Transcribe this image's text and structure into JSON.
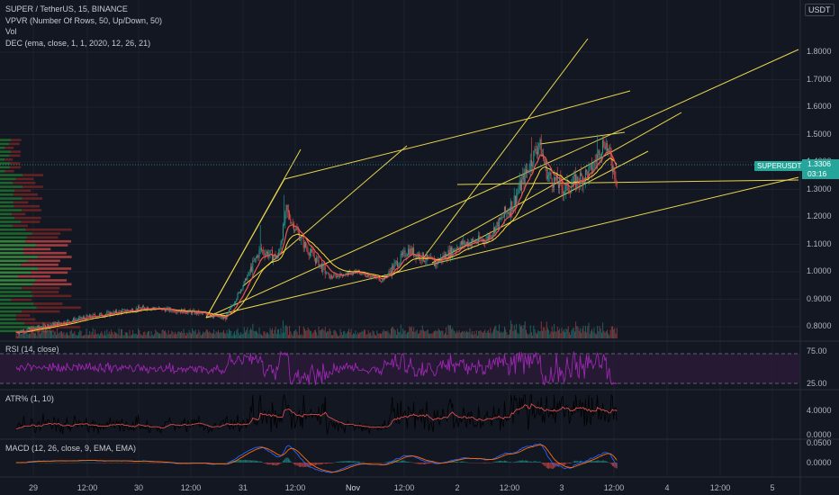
{
  "legend": {
    "title": "SUPER / TetherUS, 15, BINANCE",
    "vpvr": "VPVR (Number Of Rows, 50, Up/Down, 50)",
    "vol": "Vol",
    "dec": "DEC (ema, close, 1, 1, 2020, 12, 26, 21)"
  },
  "currency": "USDT",
  "last_price": {
    "ticker": "SUPERUSDT",
    "price": "1.3306",
    "countdown": "03:16"
  },
  "panes": {
    "rsi": {
      "label": "RSI (14, close)",
      "ticks": [
        "75.00",
        "25.00"
      ]
    },
    "atr": {
      "label": "ATR% (1, 10)",
      "ticks": [
        "4.0000",
        "0.0000"
      ]
    },
    "macd": {
      "label": "MACD (12, 26, close, 9, EMA, EMA)",
      "ticks": [
        "0.0500",
        "0.0000"
      ]
    }
  },
  "price_ticks": [
    "1.8000",
    "1.7000",
    "1.6000",
    "1.5000",
    "1.4000",
    "1.3000",
    "1.2000",
    "1.1000",
    "1.0000",
    "0.9000",
    "0.8000"
  ],
  "time_ticks": [
    "29",
    "12:00",
    "30",
    "12:00",
    "31",
    "12:00",
    "Nov",
    "12:00",
    "2",
    "12:00",
    "3",
    "12:00",
    "4",
    "12:00",
    "5"
  ],
  "colors": {
    "background": "#131722",
    "up": "#26a69a",
    "down": "#ef5350",
    "ema": "#ef5350",
    "ma": "#fdd835",
    "trendline": "#e8d44d",
    "rsi": "#9c27b0",
    "rsi_band": "#2a1a3a",
    "macd": "#2962ff",
    "signal": "#ff6d00",
    "vpvr_up": "#1e6b2e",
    "vpvr_down": "#6b2424",
    "vpvr_value_up": "#3a8f3e",
    "vpvr_value_down": "#b04040"
  },
  "chart_data": {
    "type": "candlestick",
    "title": "SUPER / TetherUS, 15, BINANCE",
    "x_unit": "15-minute bars, Oct 29 to Nov 3",
    "y_unit": "USDT",
    "ylim": [
      0.77,
      1.82
    ],
    "price_path": [
      {
        "t": "Oct 28 18:00",
        "close": 0.78
      },
      {
        "t": "Oct 29 06:00",
        "close": 0.82
      },
      {
        "t": "Oct 29 12:00",
        "close": 0.84
      },
      {
        "t": "Oct 30 00:00",
        "close": 0.87
      },
      {
        "t": "Oct 30 12:00",
        "close": 0.85
      },
      {
        "t": "Oct 30 18:00",
        "close": 0.83
      },
      {
        "t": "Oct 30 22:00",
        "close": 0.95
      },
      {
        "t": "Oct 31 02:00",
        "close": 1.08
      },
      {
        "t": "Oct 31 06:00",
        "close": 1.05
      },
      {
        "t": "Oct 31 08:00",
        "close": 1.22
      },
      {
        "t": "Oct 31 12:00",
        "close": 1.1
      },
      {
        "t": "Oct 31 18:00",
        "close": 0.98
      },
      {
        "t": "Nov 1 00:00",
        "close": 1.0
      },
      {
        "t": "Nov 1 06:00",
        "close": 0.97
      },
      {
        "t": "Nov 1 12:00",
        "close": 1.08
      },
      {
        "t": "Nov 1 18:00",
        "close": 1.03
      },
      {
        "t": "Nov 2 00:00",
        "close": 1.1
      },
      {
        "t": "Nov 2 06:00",
        "close": 1.12
      },
      {
        "t": "Nov 2 12:00",
        "close": 1.25
      },
      {
        "t": "Nov 2 18:00",
        "close": 1.47
      },
      {
        "t": "Nov 2 20:00",
        "close": 1.35
      },
      {
        "t": "Nov 3 00:00",
        "close": 1.3
      },
      {
        "t": "Nov 3 06:00",
        "close": 1.37
      },
      {
        "t": "Nov 3 09:00",
        "close": 1.48
      },
      {
        "t": "Nov 3 12:00",
        "close": 1.33
      }
    ],
    "rsi_range": [
      25,
      75
    ],
    "atr_range": [
      0,
      4
    ],
    "macd_range": [
      -0.02,
      0.05
    ],
    "grid": true
  }
}
